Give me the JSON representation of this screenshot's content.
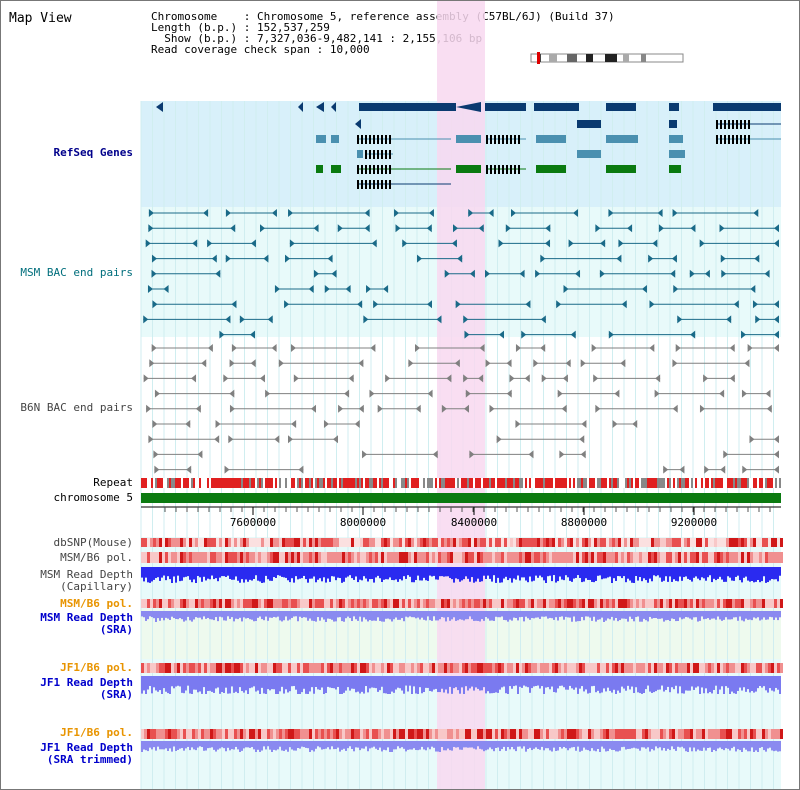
{
  "title": "Map View",
  "info": {
    "chromosome_key": "Chromosome",
    "chromosome_val": "Chromosome 5, reference assembly (C57BL/6J) (Build 37)",
    "length_key": "Length (b.p.)",
    "length_val": "152,537,259",
    "show_key": "Show (b.p.)",
    "show_val": "7,327,036-9,482,141 : 2,155,106 bp",
    "span_key": "Read coverage check span",
    "span_val": "10,000"
  },
  "tracks": {
    "refseq": "RefSeq Genes",
    "msm_bac": "MSM BAC end pairs",
    "b6n_bac": "B6N BAC end pairs",
    "repeat": "Repeat",
    "chrom": "chromosome 5",
    "dbsnp": "dbSNP(Mouse)",
    "msm_pol1": "MSM/B6 pol.",
    "msm_depth_cap1": "MSM Read Depth",
    "msm_depth_cap2": "(Capillary)",
    "msm_pol2": "MSM/B6 pol.",
    "msm_sra1": "MSM Read Depth",
    "msm_sra2": "(SRA)",
    "jf1_pol1": "JF1/B6 pol.",
    "jf1_sra1": "JF1 Read Depth",
    "jf1_sra2": "(SRA)",
    "jf1_pol2": "JF1/B6 pol.",
    "jf1_trim1": "JF1 Read Depth",
    "jf1_trim2": "(SRA trimmed)"
  },
  "axis": {
    "ticks": [
      "7600000",
      "8000000",
      "8400000",
      "8800000",
      "9200000"
    ]
  },
  "colors": {
    "highlight": "#f8d8f0",
    "refseq_bg": "#d8f0fa",
    "light_bg": "#e8fafa",
    "gene_dark": "#0a3a70",
    "gene_mid": "#4a90b0",
    "gene_green": "#0a7a10",
    "chrom_green": "#0a7a10",
    "msm_line": "#1a6a88",
    "b6n_line": "#808080",
    "depth_blue": "#3a3af0"
  }
}
